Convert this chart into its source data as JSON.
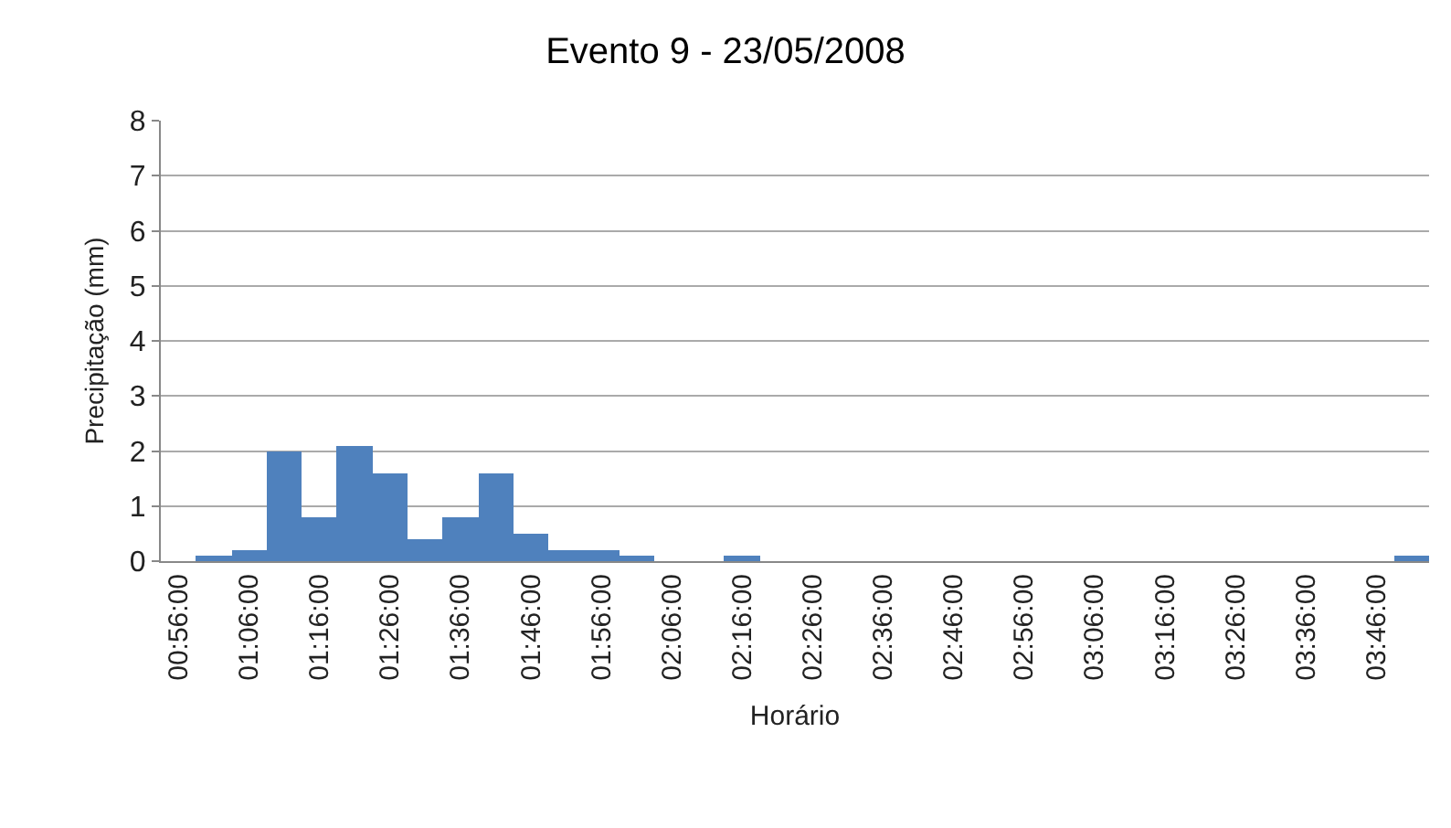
{
  "chart_data": {
    "type": "bar",
    "title": "Evento 9 - 23/05/2008",
    "xlabel": "Horário",
    "ylabel": "Precipitação (mm)",
    "categories": [
      "00:56:00",
      null,
      "01:06:00",
      null,
      "01:16:00",
      null,
      "01:26:00",
      null,
      "01:36:00",
      null,
      "01:46:00",
      null,
      "01:56:00",
      null,
      "02:06:00",
      null,
      "02:16:00",
      null,
      "02:26:00",
      null,
      "02:36:00",
      null,
      "02:46:00",
      null,
      "02:56:00",
      null,
      "03:06:00",
      null,
      "03:16:00",
      null,
      "03:26:00",
      null,
      "03:36:00",
      null,
      "03:46:00",
      null
    ],
    "values": [
      0,
      0.1,
      0.2,
      2.0,
      0.8,
      2.1,
      1.6,
      0.4,
      0.8,
      1.6,
      0.5,
      0.2,
      0.2,
      0.1,
      0,
      0,
      0.1,
      0,
      0,
      0,
      0,
      0,
      0,
      0,
      0,
      0,
      0,
      0,
      0,
      0,
      0,
      0,
      0,
      0,
      0,
      0.1
    ],
    "color": "#4f81bd",
    "ylim": [
      0,
      8
    ],
    "yticks": [
      0,
      1,
      2,
      3,
      4,
      5,
      6,
      7,
      8
    ],
    "grid": "y"
  }
}
